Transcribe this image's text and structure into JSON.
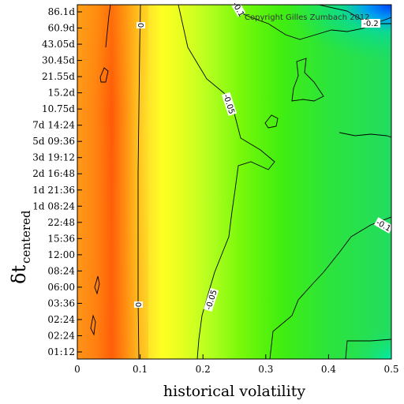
{
  "chart_data": {
    "type": "heatmap",
    "xlabel": "historical volatility",
    "ylabel_main": "δt",
    "ylabel_sub": "centered",
    "xlim": [
      0,
      0.5
    ],
    "x_ticks": [
      "0",
      "0.1",
      "0.2",
      "0.3",
      "0.4",
      "0.5"
    ],
    "y_ticks": [
      "01:12",
      "02:24",
      "02:24",
      "03:36",
      "06:00",
      "08:24",
      "12:00",
      "15:36",
      "22:48",
      "1d 08:24",
      "1d 21:36",
      "2d 16:48",
      "3d 19:12",
      "5d 09:36",
      "7d 14:24",
      "10.75d",
      "15.2d",
      "21.55d",
      "30.45d",
      "43.05d",
      "60.9d",
      "86.1d"
    ],
    "contour_levels": [
      {
        "label": "0",
        "value": 0
      },
      {
        "label": "-0.05",
        "value": -0.05
      },
      {
        "label": "-0.1",
        "value": -0.1
      },
      {
        "label": "-0.2",
        "value": -0.2
      }
    ],
    "contour_annotations": [
      {
        "text": "0",
        "x": 0.1,
        "y_index": 20.6
      },
      {
        "text": "0",
        "x": 0.098,
        "y_index": 3.0
      },
      {
        "text": "-0.05",
        "x": 0.237,
        "y_index": 15.6
      },
      {
        "text": "-0.05",
        "x": 0.22,
        "y_index": 3.6
      },
      {
        "text": "-0.1",
        "x": 0.485,
        "y_index": 8.0
      },
      {
        "text": "-0.1",
        "x": 0.26,
        "y_index": 21.3
      },
      {
        "text": "-0.2",
        "x": 0.465,
        "y_index": 20.6
      }
    ],
    "colormap": [
      "#ff3c00",
      "#ff9a10",
      "#ffd82a",
      "#ffff20",
      "#d0ff20",
      "#6ff000",
      "#2edd40",
      "#00e0a0",
      "#00c8e8",
      "#0050ff"
    ],
    "watermark": "Copyright Gilles Zumbach 2012"
  }
}
